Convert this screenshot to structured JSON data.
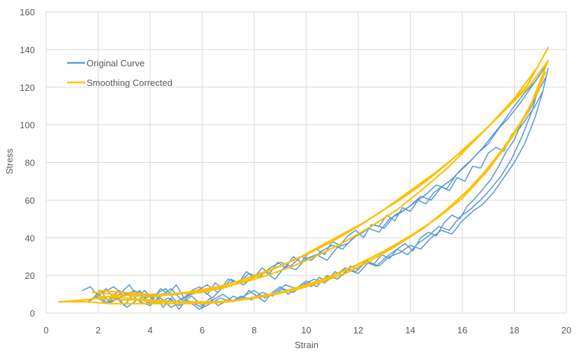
{
  "chart_data": {
    "type": "line",
    "xlabel": "Strain",
    "ylabel": "Stress",
    "xlim": [
      0,
      20
    ],
    "ylim": [
      0,
      160
    ],
    "xticks": [
      0,
      2,
      4,
      6,
      8,
      10,
      12,
      14,
      16,
      18,
      20
    ],
    "yticks": [
      0,
      20,
      40,
      60,
      80,
      100,
      120,
      140,
      160
    ],
    "grid": true,
    "legend_position": "top-left",
    "colors": {
      "original": "#5b9bd5",
      "smoothed": "#ffc000",
      "grid": "#d9d9d9",
      "axis_text": "#595959"
    },
    "series": [
      {
        "name": "Original Curve",
        "lines": [
          {
            "x": [
              1.4,
              1.7,
              2.0,
              2.3,
              2.6,
              2.9,
              3.2,
              3.5,
              3.8,
              4.1,
              4.4,
              4.7,
              5.0,
              5.3,
              5.6,
              5.9,
              6.2,
              6.5,
              6.8,
              7.1,
              7.4,
              7.7,
              8.0,
              8.3,
              8.6,
              8.9,
              9.2,
              9.5,
              9.8,
              10.1,
              10.4,
              10.7,
              11.0,
              11.3,
              11.6,
              11.9,
              12.2,
              12.5,
              12.8,
              13.1,
              13.4,
              13.7,
              14.0,
              14.3,
              14.6,
              14.9,
              15.2,
              15.5,
              15.8,
              16.1,
              16.4,
              16.7,
              17.0,
              17.3,
              17.6,
              17.9,
              18.2,
              18.5,
              18.8,
              19.1,
              19.3
            ],
            "y": [
              12,
              14,
              9,
              13,
              8,
              11,
              15,
              9,
              12,
              7,
              13,
              10,
              15,
              8,
              12,
              14,
              10,
              16,
              13,
              18,
              16,
              22,
              19,
              24,
              21,
              27,
              24,
              30,
              27,
              32,
              34,
              31,
              38,
              36,
              41,
              44,
              40,
              47,
              46,
              52,
              49,
              56,
              54,
              60,
              58,
              64,
              67,
              65,
              72,
              70,
              78,
              77,
              85,
              88,
              86,
              95,
              98,
              104,
              110,
              118,
              130
            ]
          },
          {
            "x": [
              1.8,
              2.1,
              2.4,
              2.7,
              3.0,
              3.3,
              3.6,
              3.9,
              4.2,
              4.5,
              4.8,
              5.1,
              5.4,
              5.7,
              6.0,
              6.3,
              6.6,
              6.9,
              7.2,
              7.5,
              7.8,
              8.1,
              8.4,
              8.7,
              9.0,
              9.3,
              9.6,
              9.9,
              10.2,
              10.5,
              10.8,
              11.1,
              11.4,
              11.7,
              12.0,
              12.3,
              12.6,
              12.9,
              13.2,
              13.5,
              13.8,
              14.1,
              14.4,
              14.7,
              15.0,
              15.3,
              15.6,
              15.9,
              16.2,
              16.5,
              16.8,
              17.1,
              17.4,
              17.7,
              18.0,
              18.3,
              18.6,
              18.9,
              19.2
            ],
            "y": [
              8,
              12,
              6,
              10,
              4,
              9,
              12,
              5,
              10,
              3,
              8,
              2,
              7,
              5,
              3,
              8,
              4,
              6,
              9,
              7,
              12,
              9,
              6,
              11,
              14,
              10,
              13,
              16,
              14,
              19,
              17,
              22,
              20,
              25,
              23,
              28,
              26,
              31,
              29,
              34,
              37,
              33,
              40,
              43,
              41,
              48,
              52,
              50,
              57,
              61,
              66,
              71,
              78,
              86,
              92,
              102,
              108,
              117,
              125
            ]
          },
          {
            "x": [
              2.0,
              2.4,
              2.8,
              3.2,
              3.6,
              4.0,
              4.4,
              4.8,
              5.2,
              5.6,
              6.0,
              6.4,
              6.8,
              7.2,
              7.6,
              8.0,
              8.4,
              8.8,
              9.2,
              9.6,
              10.0,
              10.4,
              10.8,
              11.2,
              11.6,
              12.0,
              12.4,
              12.8,
              13.2,
              13.6,
              14.0,
              14.4,
              14.8,
              15.2,
              15.6,
              16.0,
              16.4,
              16.8,
              17.2,
              17.6,
              18.0,
              18.4,
              18.8,
              19.2
            ],
            "y": [
              10,
              7,
              12,
              9,
              11,
              5,
              9,
              13,
              7,
              10,
              12,
              8,
              14,
              17,
              15,
              20,
              22,
              18,
              25,
              23,
              29,
              31,
              28,
              35,
              37,
              42,
              45,
              43,
              50,
              53,
              57,
              62,
              60,
              67,
              71,
              77,
              82,
              88,
              95,
              102,
              110,
              117,
              123,
              131
            ]
          },
          {
            "x": [
              1.6,
              2.0,
              2.4,
              2.8,
              3.2,
              3.6,
              4.0,
              4.4,
              4.8,
              5.2,
              5.6,
              6.0,
              6.4,
              6.8,
              7.2,
              7.6,
              8.0,
              8.4,
              8.8,
              9.2,
              9.6,
              10.0,
              10.4,
              10.8,
              11.2,
              11.6,
              12.0,
              12.4,
              12.8,
              13.2,
              13.6,
              14.0,
              14.4,
              14.8,
              15.2,
              15.6,
              16.0,
              16.4,
              16.8,
              17.2,
              17.6,
              18.0,
              18.4,
              18.8,
              19.1
            ],
            "y": [
              6,
              9,
              5,
              8,
              11,
              6,
              4,
              8,
              3,
              6,
              9,
              4,
              7,
              10,
              6,
              9,
              12,
              8,
              11,
              15,
              13,
              17,
              14,
              20,
              18,
              23,
              21,
              27,
              25,
              30,
              32,
              36,
              34,
              40,
              44,
              42,
              49,
              54,
              58,
              64,
              72,
              80,
              90,
              104,
              118
            ]
          },
          {
            "x": [
              2.2,
              2.6,
              3.0,
              3.4,
              3.8,
              4.2,
              4.6,
              5.0,
              5.4,
              5.8,
              6.2,
              6.6,
              7.0,
              7.4,
              7.8,
              8.2,
              8.6,
              9.0,
              9.4,
              9.8,
              10.2,
              10.6,
              11.0,
              11.4,
              11.8,
              12.2,
              12.6,
              13.0,
              13.4,
              13.8,
              14.2,
              14.6,
              15.0,
              15.4,
              15.8,
              16.2,
              16.6,
              17.0,
              17.4,
              17.8,
              18.2,
              18.6,
              19.0
            ],
            "y": [
              11,
              14,
              9,
              12,
              8,
              10,
              13,
              6,
              9,
              12,
              15,
              11,
              18,
              16,
              21,
              19,
              24,
              27,
              25,
              30,
              28,
              33,
              36,
              34,
              40,
              43,
              47,
              45,
              52,
              55,
              59,
              63,
              68,
              66,
              74,
              79,
              85,
              90,
              98,
              104,
              111,
              119,
              127
            ]
          },
          {
            "x": [
              1.9,
              2.3,
              2.7,
              3.1,
              3.5,
              3.9,
              4.3,
              4.7,
              5.1,
              5.5,
              5.9,
              6.3,
              6.7,
              7.1,
              7.5,
              7.9,
              8.3,
              8.7,
              9.1,
              9.5,
              9.9,
              10.3,
              10.7,
              11.1,
              11.5,
              11.9,
              12.3,
              12.7,
              13.1,
              13.5,
              13.9,
              14.3,
              14.7,
              15.1,
              15.5,
              15.9,
              16.3,
              16.7,
              17.1,
              17.5,
              17.9,
              18.3,
              18.7,
              19.0
            ],
            "y": [
              9,
              5,
              8,
              3,
              7,
              10,
              5,
              8,
              4,
              6,
              2,
              5,
              8,
              6,
              9,
              7,
              11,
              9,
              13,
              11,
              15,
              18,
              16,
              20,
              24,
              22,
              27,
              25,
              30,
              34,
              31,
              37,
              41,
              46,
              44,
              51,
              55,
              60,
              66,
              73,
              82,
              94,
              108,
              124
            ]
          }
        ]
      },
      {
        "name": "Smoothing Corrected",
        "lines": [
          {
            "x": [
              0.5,
              1.5,
              2.5,
              3.5,
              4.5,
              5.5,
              6.5,
              7.5,
              8.5,
              9.5,
              10.5,
              11.5,
              12.5,
              13.5,
              14.5,
              15.5,
              16.5,
              17.5,
              18.5,
              19.3
            ],
            "y": [
              6,
              7,
              9,
              10,
              10,
              11,
              13,
              16,
              20,
              25,
              31,
              38,
              46,
              55,
              66,
              78,
              92,
              106,
              121,
              141
            ]
          },
          {
            "x": [
              0.5,
              1.5,
              2.5,
              3.5,
              4.5,
              5.5,
              6.5,
              7.5,
              8.5,
              9.5,
              10.5,
              11.5,
              12.5,
              13.5,
              14.5,
              15.5,
              16.5,
              17.5,
              18.5,
              19.3
            ],
            "y": [
              6,
              6,
              5,
              5,
              5,
              5,
              6,
              7,
              9,
              12,
              16,
              21,
              28,
              36,
              45,
              56,
              69,
              86,
              106,
              134
            ]
          },
          {
            "x": [
              1.8,
              2.6,
              3.4,
              4.2,
              5.0,
              5.8,
              6.6,
              7.4,
              8.2,
              9.0,
              9.8,
              10.6,
              11.4,
              12.2,
              13.0,
              13.8,
              14.6,
              15.4,
              16.2,
              17.0,
              17.8,
              18.6,
              19.3
            ],
            "y": [
              11,
              10,
              9,
              9,
              10,
              12,
              14,
              17,
              21,
              25,
              30,
              36,
              42,
              48,
              55,
              62,
              70,
              79,
              89,
              99,
              110,
              121,
              134
            ]
          },
          {
            "x": [
              1.8,
              2.6,
              3.4,
              4.2,
              5.0,
              5.8,
              6.6,
              7.4,
              8.2,
              9.0,
              9.8,
              10.6,
              11.4,
              12.2,
              13.0,
              13.8,
              14.6,
              15.4,
              16.2,
              17.0,
              17.8,
              18.6,
              19.2
            ],
            "y": [
              8,
              7,
              7,
              6,
              6,
              6,
              6,
              7,
              9,
              11,
              14,
              17,
              22,
              27,
              33,
              39,
              46,
              55,
              65,
              77,
              92,
              109,
              128
            ]
          },
          {
            "x": [
              2.0,
              3.0,
              4.0,
              5.0,
              6.0,
              7.0,
              8.0,
              9.0,
              10.0,
              11.0,
              12.0,
              13.0,
              14.0,
              15.0,
              16.0,
              17.0,
              18.0,
              18.8
            ],
            "y": [
              12,
              11,
              10,
              10,
              11,
              14,
              19,
              25,
              31,
              38,
              46,
              55,
              65,
              75,
              86,
              99,
              114,
              129
            ]
          },
          {
            "x": [
              2.0,
              3.0,
              4.0,
              5.0,
              6.0,
              7.0,
              8.0,
              9.0,
              10.0,
              11.0,
              12.0,
              13.0,
              14.0,
              15.0,
              16.0,
              17.0,
              18.0,
              19.0
            ],
            "y": [
              9,
              8,
              7,
              6,
              5,
              6,
              8,
              11,
              15,
              20,
              26,
              33,
              41,
              50,
              61,
              76,
              95,
              120
            ]
          }
        ]
      }
    ]
  }
}
